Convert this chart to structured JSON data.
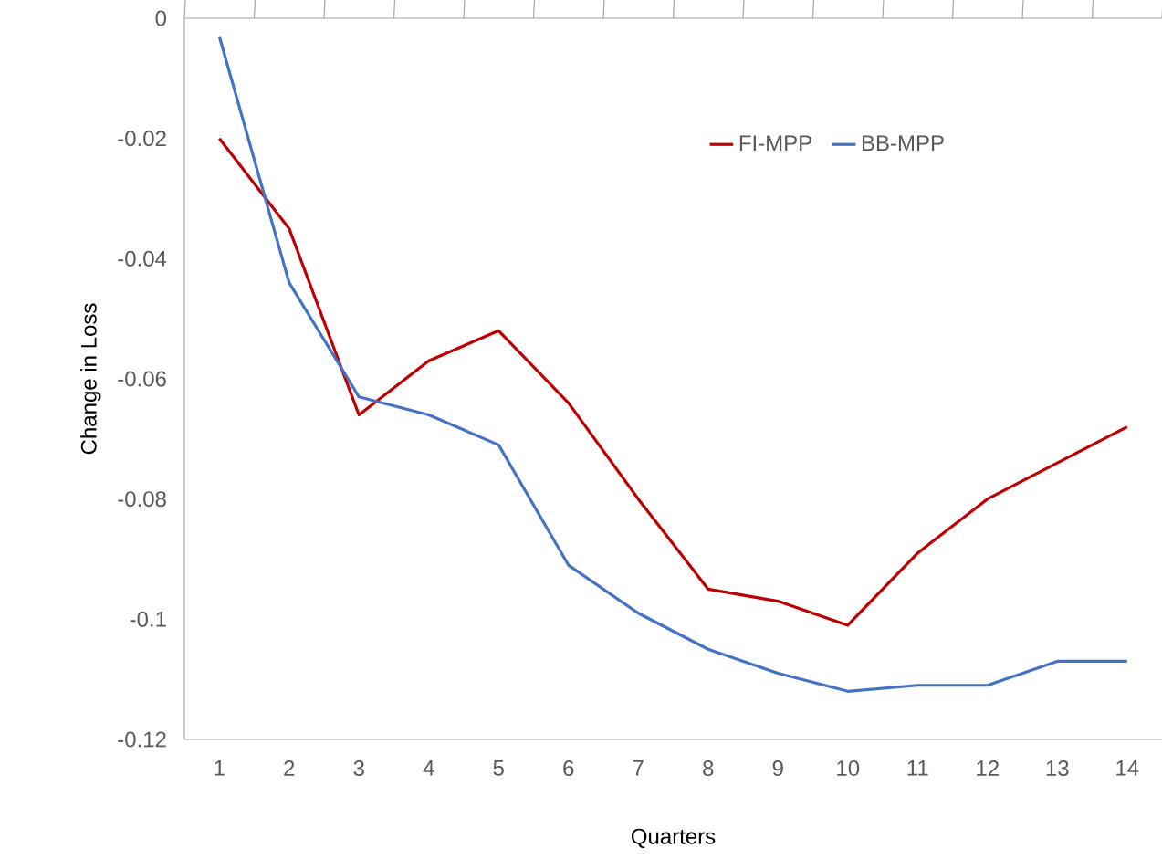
{
  "chart_data": {
    "type": "line",
    "xlabel": "Quarters",
    "ylabel": "Change in Loss",
    "categories": [
      "1",
      "2",
      "3",
      "4",
      "5",
      "6",
      "7",
      "8",
      "9",
      "10",
      "11",
      "12",
      "13",
      "14"
    ],
    "series": [
      {
        "name": "FI-MPP",
        "color": "#c00000",
        "values": [
          -0.02,
          -0.035,
          -0.066,
          -0.057,
          -0.052,
          -0.064,
          -0.08,
          -0.095,
          -0.097,
          -0.101,
          -0.089,
          -0.08,
          -0.074,
          -0.068
        ]
      },
      {
        "name": "BB-MPP",
        "color": "#4472c4",
        "values": [
          -0.003,
          -0.044,
          -0.063,
          -0.066,
          -0.071,
          -0.091,
          -0.099,
          -0.105,
          -0.109,
          -0.112,
          -0.111,
          -0.111,
          -0.107,
          -0.107
        ]
      }
    ],
    "ylim": [
      -0.12,
      0
    ],
    "yticks": [
      -0.12,
      -0.1,
      -0.08,
      -0.06,
      -0.04,
      -0.02,
      0
    ],
    "legend": "top right",
    "marker": "none",
    "line_style": "solid",
    "grid": false
  }
}
